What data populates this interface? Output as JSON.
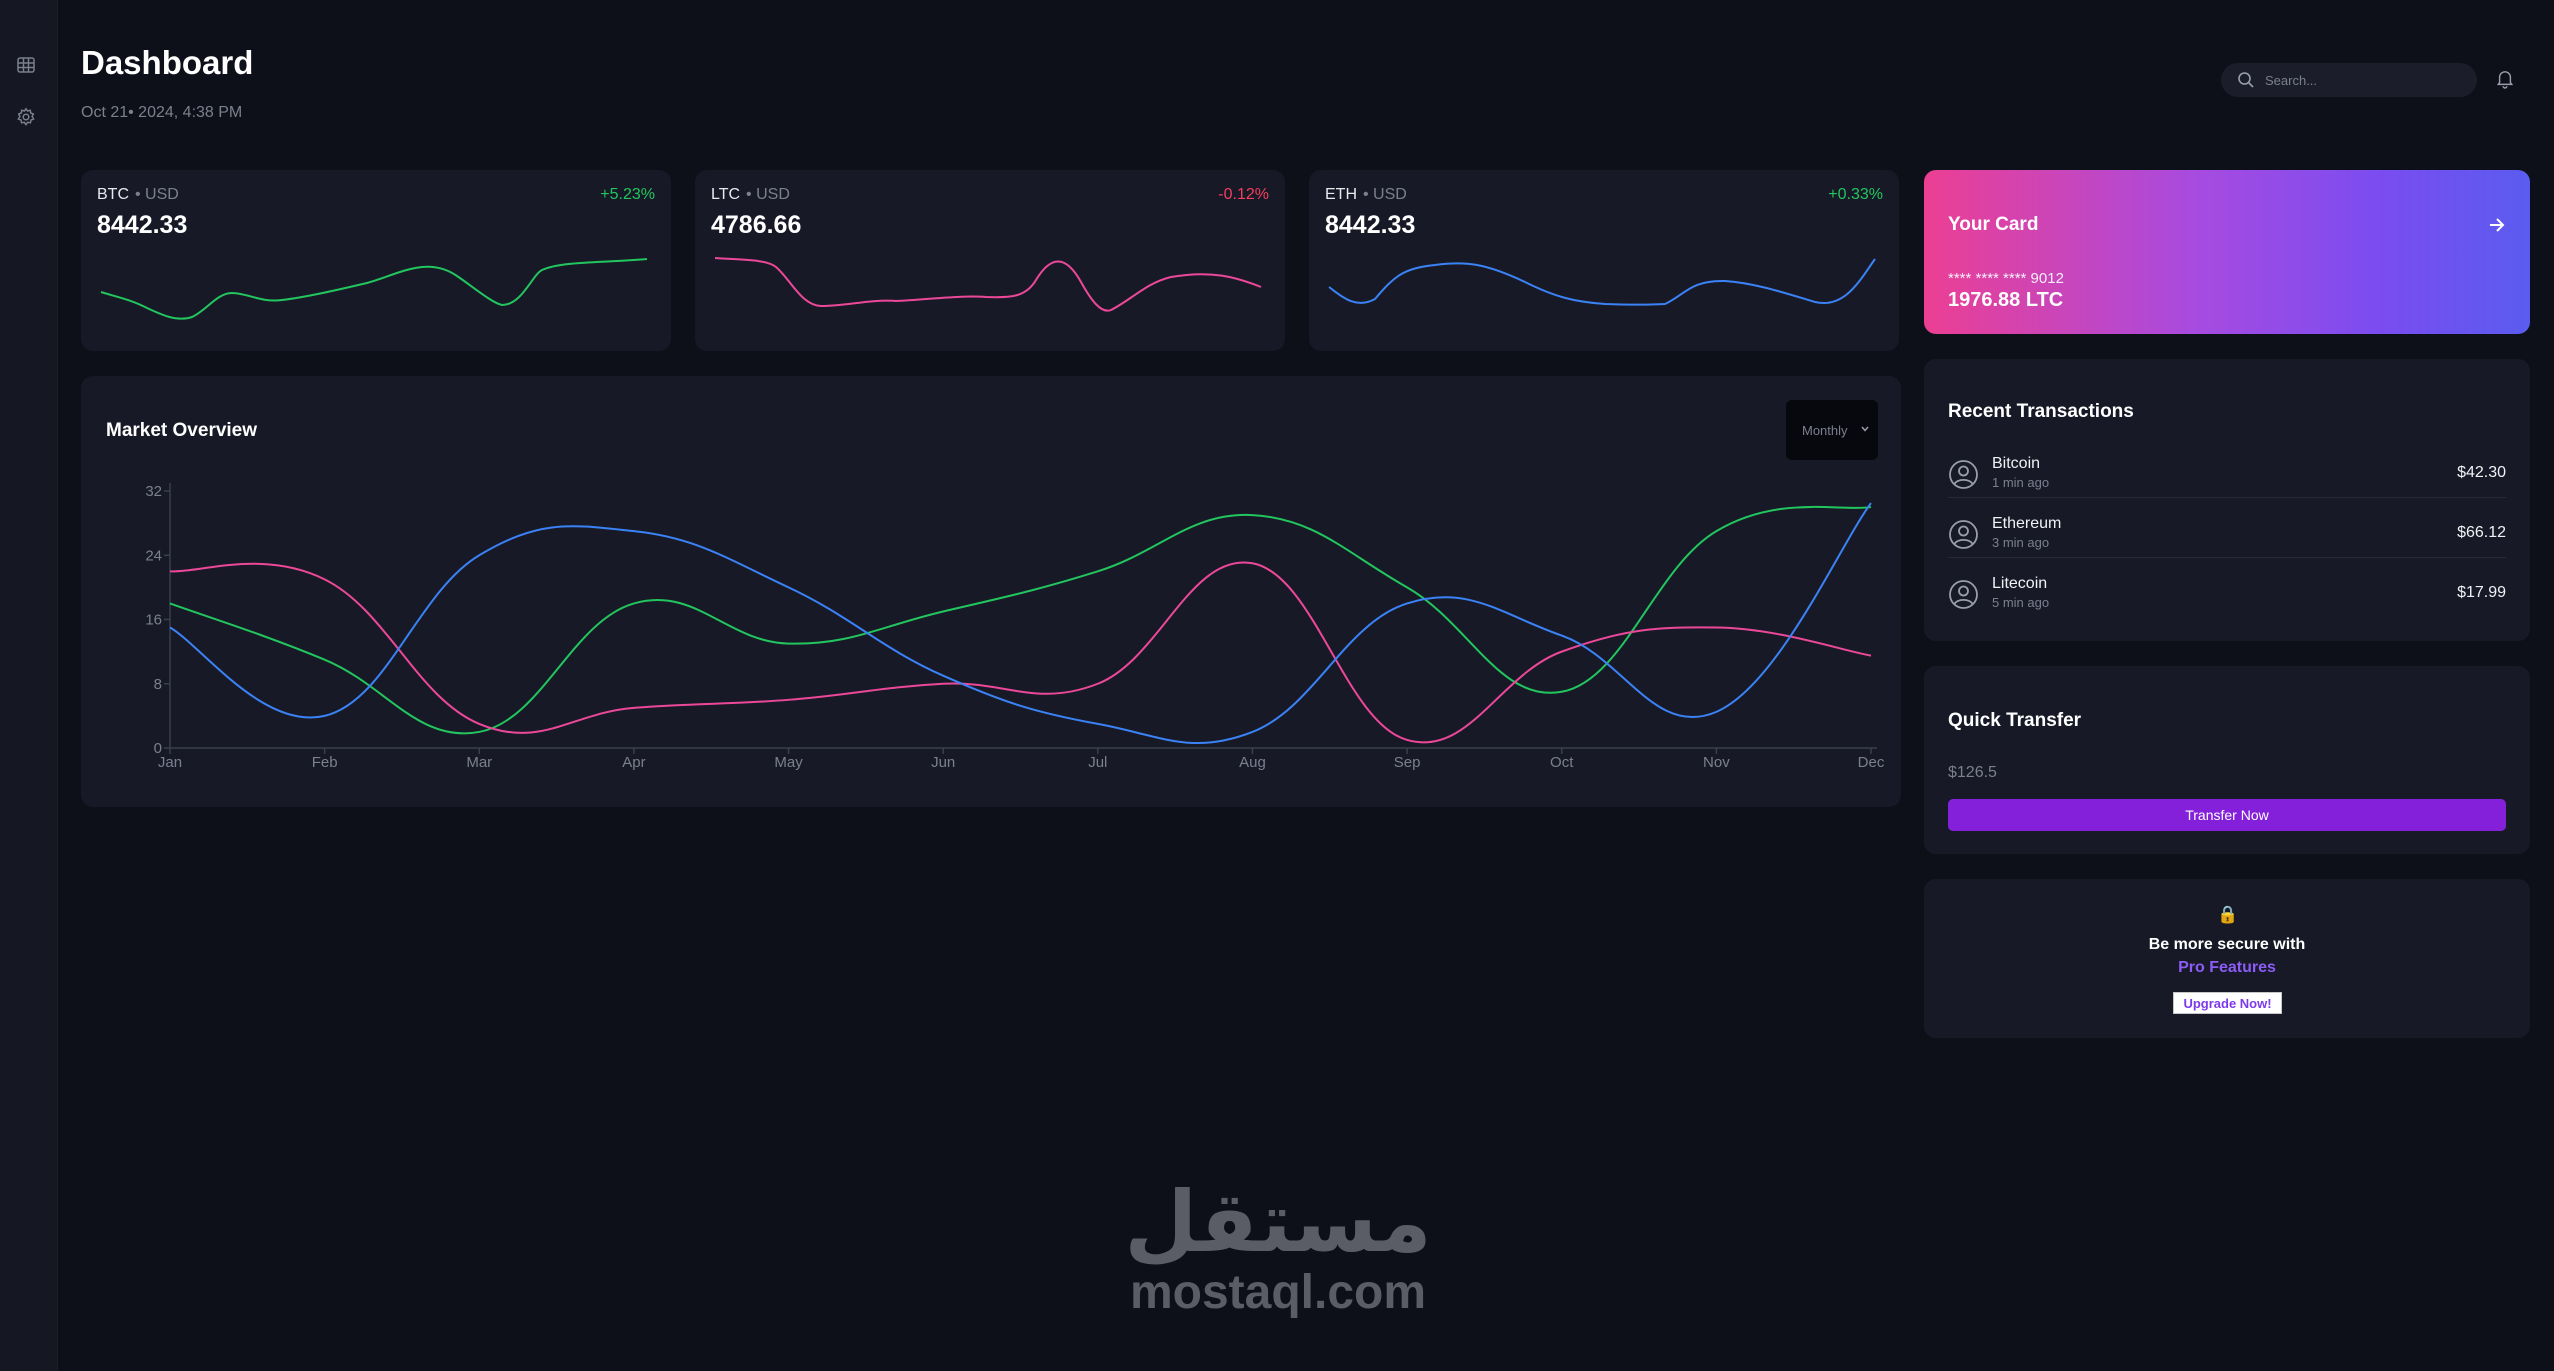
{
  "header": {
    "title": "Dashboard",
    "date": "Oct 21• 2024, 4:38 PM",
    "search_placeholder": "Search..."
  },
  "sidebar": {
    "items": [
      {
        "icon": "table-icon"
      },
      {
        "icon": "gear-icon"
      }
    ]
  },
  "tickers": [
    {
      "symbol": "BTC",
      "pair": "• USD",
      "change": "+5.23%",
      "price": "8442.33",
      "color": "#22c55e"
    },
    {
      "symbol": "LTC",
      "pair": "• USD",
      "change": "-0.12%",
      "price": "4786.66",
      "color": "#ec4899"
    },
    {
      "symbol": "ETH",
      "pair": "• USD",
      "change": "+0.33%",
      "price": "8442.33",
      "color": "#3b82f6"
    }
  ],
  "colors": {
    "positive": "#22c55e",
    "negative": "#f43f5e",
    "accent": "#8420d9",
    "pro": "#8b5cf6"
  },
  "your_card": {
    "title": "Your Card",
    "number": "**** **** **** 9012",
    "balance": "1976.88 LTC"
  },
  "market": {
    "title": "Market Overview",
    "period": "Monthly"
  },
  "chart_data": {
    "type": "line",
    "categories": [
      "Jan",
      "Feb",
      "Mar",
      "Apr",
      "May",
      "Jun",
      "Jul",
      "Aug",
      "Sep",
      "Oct",
      "Nov",
      "Dec"
    ],
    "y_ticks": [
      0,
      8,
      16,
      24,
      32
    ],
    "ylim": [
      0,
      32
    ],
    "grid": false,
    "series": [
      {
        "color": "#22c55e",
        "values": [
          18,
          11,
          2,
          18,
          13,
          17,
          22,
          29,
          20,
          7,
          27,
          30
        ]
      },
      {
        "color": "#ec4899",
        "values": [
          22,
          21,
          3,
          5,
          6,
          8,
          8,
          23,
          1,
          12,
          15,
          11.5
        ]
      },
      {
        "color": "#3b82f6",
        "values": [
          15,
          4,
          24,
          27,
          20,
          9,
          3,
          2,
          18,
          14,
          4.5,
          30.5
        ]
      }
    ]
  },
  "transactions": {
    "title": "Recent Transactions",
    "items": [
      {
        "name": "Bitcoin",
        "time": "1 min ago",
        "amount": "$42.30"
      },
      {
        "name": "Ethereum",
        "time": "3 min ago",
        "amount": "$66.12"
      },
      {
        "name": "Litecoin",
        "time": "5 min ago",
        "amount": "$17.99"
      }
    ]
  },
  "quick_transfer": {
    "title": "Quick Transfer",
    "amount": "$126.5",
    "button": "Transfer Now"
  },
  "secure": {
    "icon": "lock-icon",
    "line1": "Be more secure with",
    "line2": "Pro Features",
    "button": "Upgrade Now!"
  },
  "watermark": {
    "arabic": "مستقل",
    "latin": "mostaql.com"
  }
}
